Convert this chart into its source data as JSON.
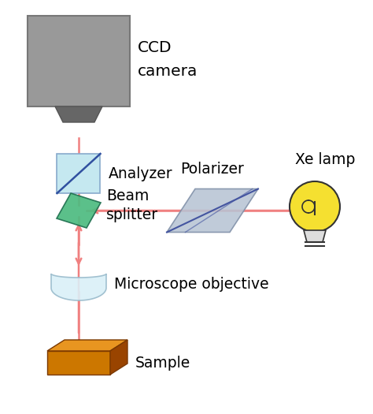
{
  "bg_color": "#ffffff",
  "beam_color": "#f08080",
  "text_color": "#000000",
  "font_size": 11.5,
  "bx": 0.18,
  "colors": {
    "ccd_body": "#999999",
    "ccd_body_edge": "#777777",
    "ccd_lens": "#666666",
    "analyzer_fill": "#c5e8f0",
    "analyzer_line": "#3050a0",
    "beamsplitter_fill": "#4dbb80",
    "beamsplitter_edge": "#207050",
    "polarizer_fill": "#b8c4d4",
    "polarizer_edge": "#8090a8",
    "polarizer_line": "#4455a0",
    "sample_front": "#cc7700",
    "sample_top": "#e89520",
    "sample_right": "#994400",
    "objective_fill": "#daf0f8",
    "objective_edge": "#99bbcc",
    "xe_yellow": "#f5e030",
    "xe_edge": "#333333"
  },
  "labels": {
    "ccd": [
      "CCD",
      "camera"
    ],
    "analyzer": "Analyzer",
    "beamsplitter": [
      "Beam",
      "splitter"
    ],
    "polarizer": "Polarizer",
    "xe_lamp": "Xe lamp",
    "objective": "Microscope objective",
    "sample": "Sample"
  }
}
